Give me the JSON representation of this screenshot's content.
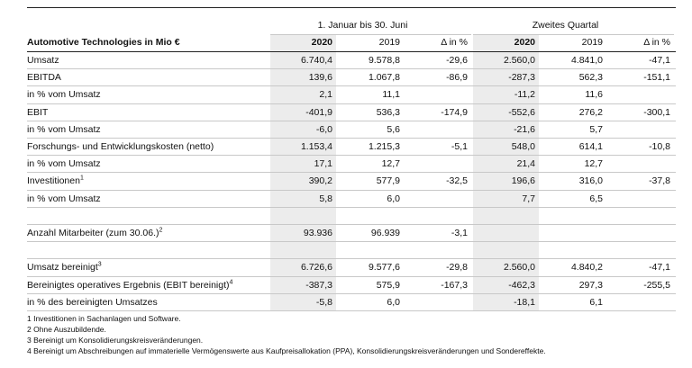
{
  "table": {
    "groups": [
      "1. Januar bis 30. Juni",
      "Zweites Quartal"
    ],
    "title": "Automotive Technologies in Mio €",
    "columns": [
      "2020",
      "2019",
      "Δ in %",
      "2020",
      "2019",
      "Δ in %"
    ],
    "rows": [
      {
        "label": "Umsatz",
        "values": [
          "6.740,4",
          "9.578,8",
          "-29,6",
          "2.560,0",
          "4.841,0",
          "-47,1"
        ]
      },
      {
        "label": "EBITDA",
        "values": [
          "139,6",
          "1.067,8",
          "-86,9",
          "-287,3",
          "562,3",
          "-151,1"
        ]
      },
      {
        "label": "in % vom Umsatz",
        "values": [
          "2,1",
          "11,1",
          null,
          "-11,2",
          "11,6",
          null
        ]
      },
      {
        "label": "EBIT",
        "values": [
          "-401,9",
          "536,3",
          "-174,9",
          "-552,6",
          "276,2",
          "-300,1"
        ]
      },
      {
        "label": "in % vom Umsatz",
        "values": [
          "-6,0",
          "5,6",
          null,
          "-21,6",
          "5,7",
          null
        ]
      },
      {
        "label": "Forschungs- und Entwicklungskosten (netto)",
        "values": [
          "1.153,4",
          "1.215,3",
          "-5,1",
          "548,0",
          "614,1",
          "-10,8"
        ]
      },
      {
        "label": "in % vom Umsatz",
        "values": [
          "17,1",
          "12,7",
          null,
          "21,4",
          "12,7",
          null
        ]
      },
      {
        "label": "Investitionen",
        "sup": "1",
        "values": [
          "390,2",
          "577,9",
          "-32,5",
          "196,6",
          "316,0",
          "-37,8"
        ]
      },
      {
        "label": "in % vom Umsatz",
        "values": [
          "5,8",
          "6,0",
          null,
          "7,7",
          "6,5",
          null
        ]
      },
      {
        "label": null,
        "values": [
          null,
          null,
          null,
          null,
          null,
          null
        ]
      },
      {
        "label": "Anzahl Mitarbeiter (zum 30.06.)",
        "sup": "2",
        "values": [
          "93.936",
          "96.939",
          "-3,1",
          null,
          null,
          null
        ]
      },
      {
        "label": null,
        "values": [
          null,
          null,
          null,
          null,
          null,
          null
        ]
      },
      {
        "label": "Umsatz bereinigt",
        "sup": "3",
        "values": [
          "6.726,6",
          "9.577,6",
          "-29,8",
          "2.560,0",
          "4.840,2",
          "-47,1"
        ]
      },
      {
        "label": "Bereinigtes operatives Ergebnis (EBIT bereinigt)",
        "sup": "4",
        "values": [
          "-387,3",
          "575,9",
          "-167,3",
          "-462,3",
          "297,3",
          "-255,5"
        ]
      },
      {
        "label": "in % des bereinigten Umsatzes",
        "values": [
          "-5,8",
          "6,0",
          null,
          "-18,1",
          "6,1",
          null
        ]
      }
    ],
    "footnotes": [
      "1 Investitionen in Sachanlagen und Software.",
      "2 Ohne Auszubildende.",
      "3 Bereinigt um Konsolidierungskreisveränderungen.",
      "4 Bereinigt um Abschreibungen auf immaterielle Vermögenswerte aus Kaufpreisallokation (PPA), Konsolidierungskreisveränderungen und Sondereffekte."
    ]
  }
}
